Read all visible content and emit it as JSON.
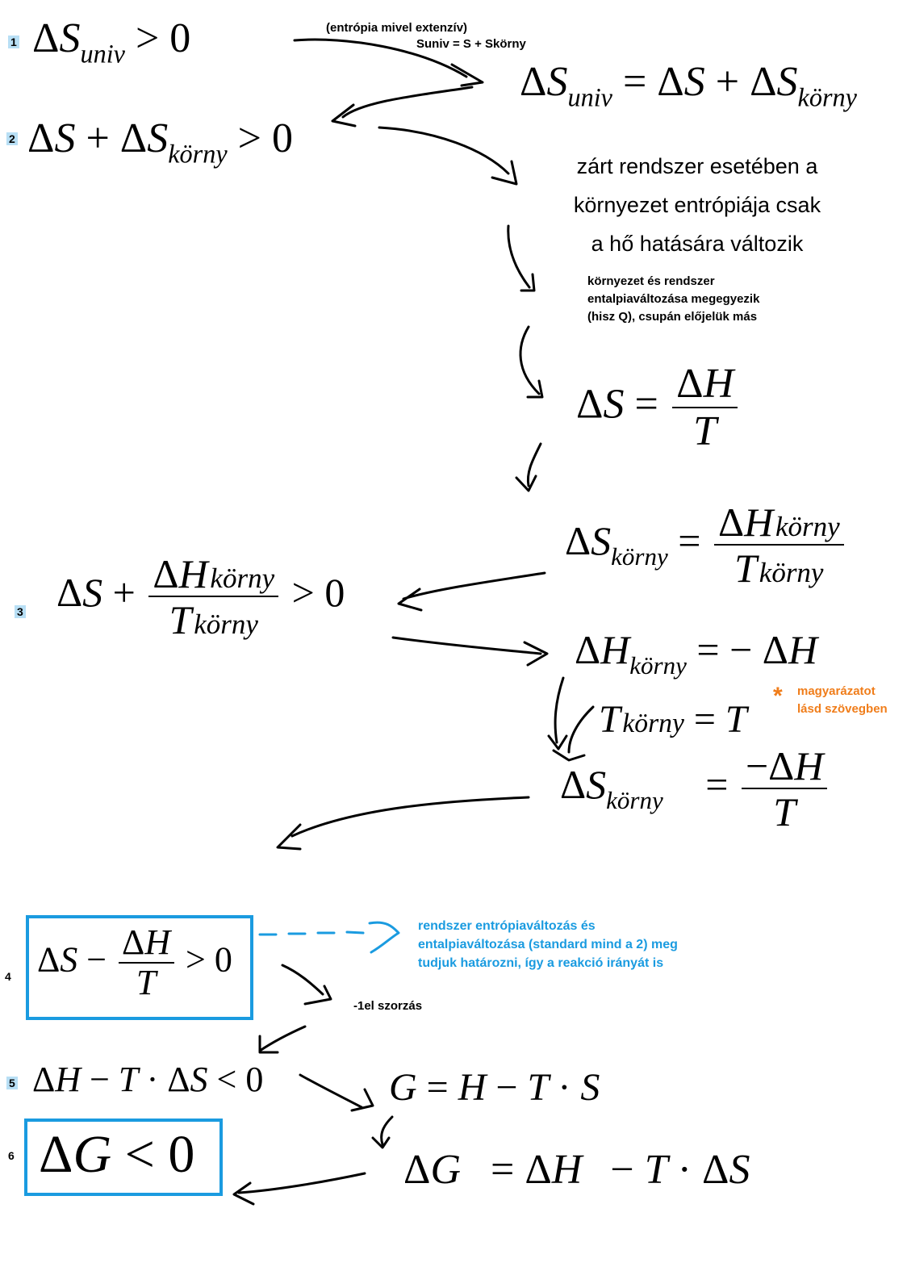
{
  "steps": {
    "s1": "1",
    "s2": "2",
    "s3": "3",
    "s4": "4",
    "s5": "5",
    "s6": "6"
  },
  "symbols": {
    "delta": "Δ",
    "S": "S",
    "H": "H",
    "T": "T",
    "G": "G",
    "sub_univ": "univ",
    "sub_korny": "körny",
    "gt": ">",
    "lt": "<",
    "eq": "=",
    "plus": "+",
    "minus": "−",
    "cdot": "·",
    "zero": "0"
  },
  "notes": {
    "extensive_line1": "(entrópia mivel extenzív)",
    "extensive_line2": "Suniv = S + Skörny",
    "closed_line1": "zárt rendszer esetében a",
    "closed_line2": "környezet entrópiája csak",
    "closed_line3": "a hő hatására változik",
    "enthalpy_line1": "környezet és rendszer",
    "enthalpy_line2": "entalpiaváltozása megegyezik",
    "enthalpy_line3": "(hisz Q), csupán előjelük más",
    "explain_star": "*",
    "explain_line1": "magyarázatot",
    "explain_line2": "lásd szövegben",
    "blue_line1": "rendszer entrópiaváltozás és",
    "blue_line2": "entalpiaváltozása (standard mind a 2) meg",
    "blue_line3": "tudjuk határozni, így a reakció irányát  is",
    "multiply": "-1el szorzás"
  },
  "colors": {
    "accent_blue": "#1a9be0",
    "accent_orange": "#f07d1a",
    "label_bg": "#b8dff5"
  }
}
